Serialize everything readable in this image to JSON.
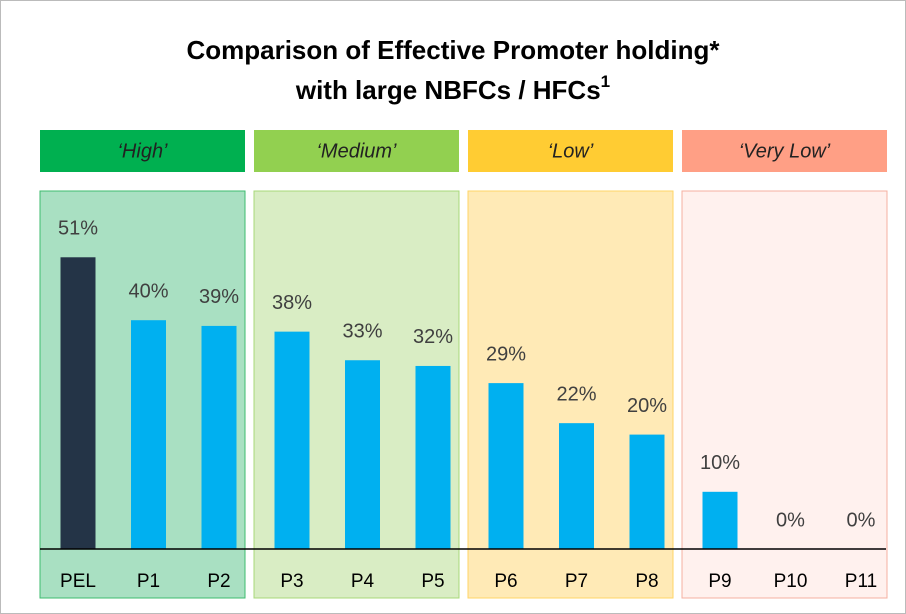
{
  "chart_data": {
    "type": "bar",
    "title": [
      "Comparison of Effective Promoter holding*",
      "with large NBFCs / HFCs"
    ],
    "title_note": "1",
    "groups": [
      {
        "label": "‘High’",
        "header_color": "#00b050",
        "fill_color": "#a9e0c2",
        "border_color": "#3dbb6e"
      },
      {
        "label": "‘Medium’",
        "header_color": "#92d050",
        "fill_color": "#d9edc4",
        "border_color": "#a8d878"
      },
      {
        "label": "‘Low’",
        "header_color": "#ffcc33",
        "fill_color": "#ffeab6",
        "border_color": "#ffd466"
      },
      {
        "label": "‘Very Low’",
        "header_color": "#ff9f85",
        "fill_color": "#fff1ee",
        "border_color": "#f5b0a0"
      }
    ],
    "categories": [
      "PEL",
      "P1",
      "P2",
      "P3",
      "P4",
      "P5",
      "P6",
      "P7",
      "P8",
      "P9",
      "P10",
      "P11"
    ],
    "values": [
      51,
      40,
      39,
      38,
      33,
      32,
      29,
      22,
      20,
      10,
      0,
      0
    ],
    "value_labels": [
      "51%",
      "40%",
      "39%",
      "38%",
      "33%",
      "32%",
      "29%",
      "22%",
      "20%",
      "10%",
      "0%",
      "0%"
    ],
    "colors": [
      "#243447",
      "#00b0f0",
      "#00b0f0",
      "#00b0f0",
      "#00b0f0",
      "#00b0f0",
      "#00b0f0",
      "#00b0f0",
      "#00b0f0",
      "#00b0f0",
      "#00b0f0",
      "#00b0f0"
    ]
  }
}
